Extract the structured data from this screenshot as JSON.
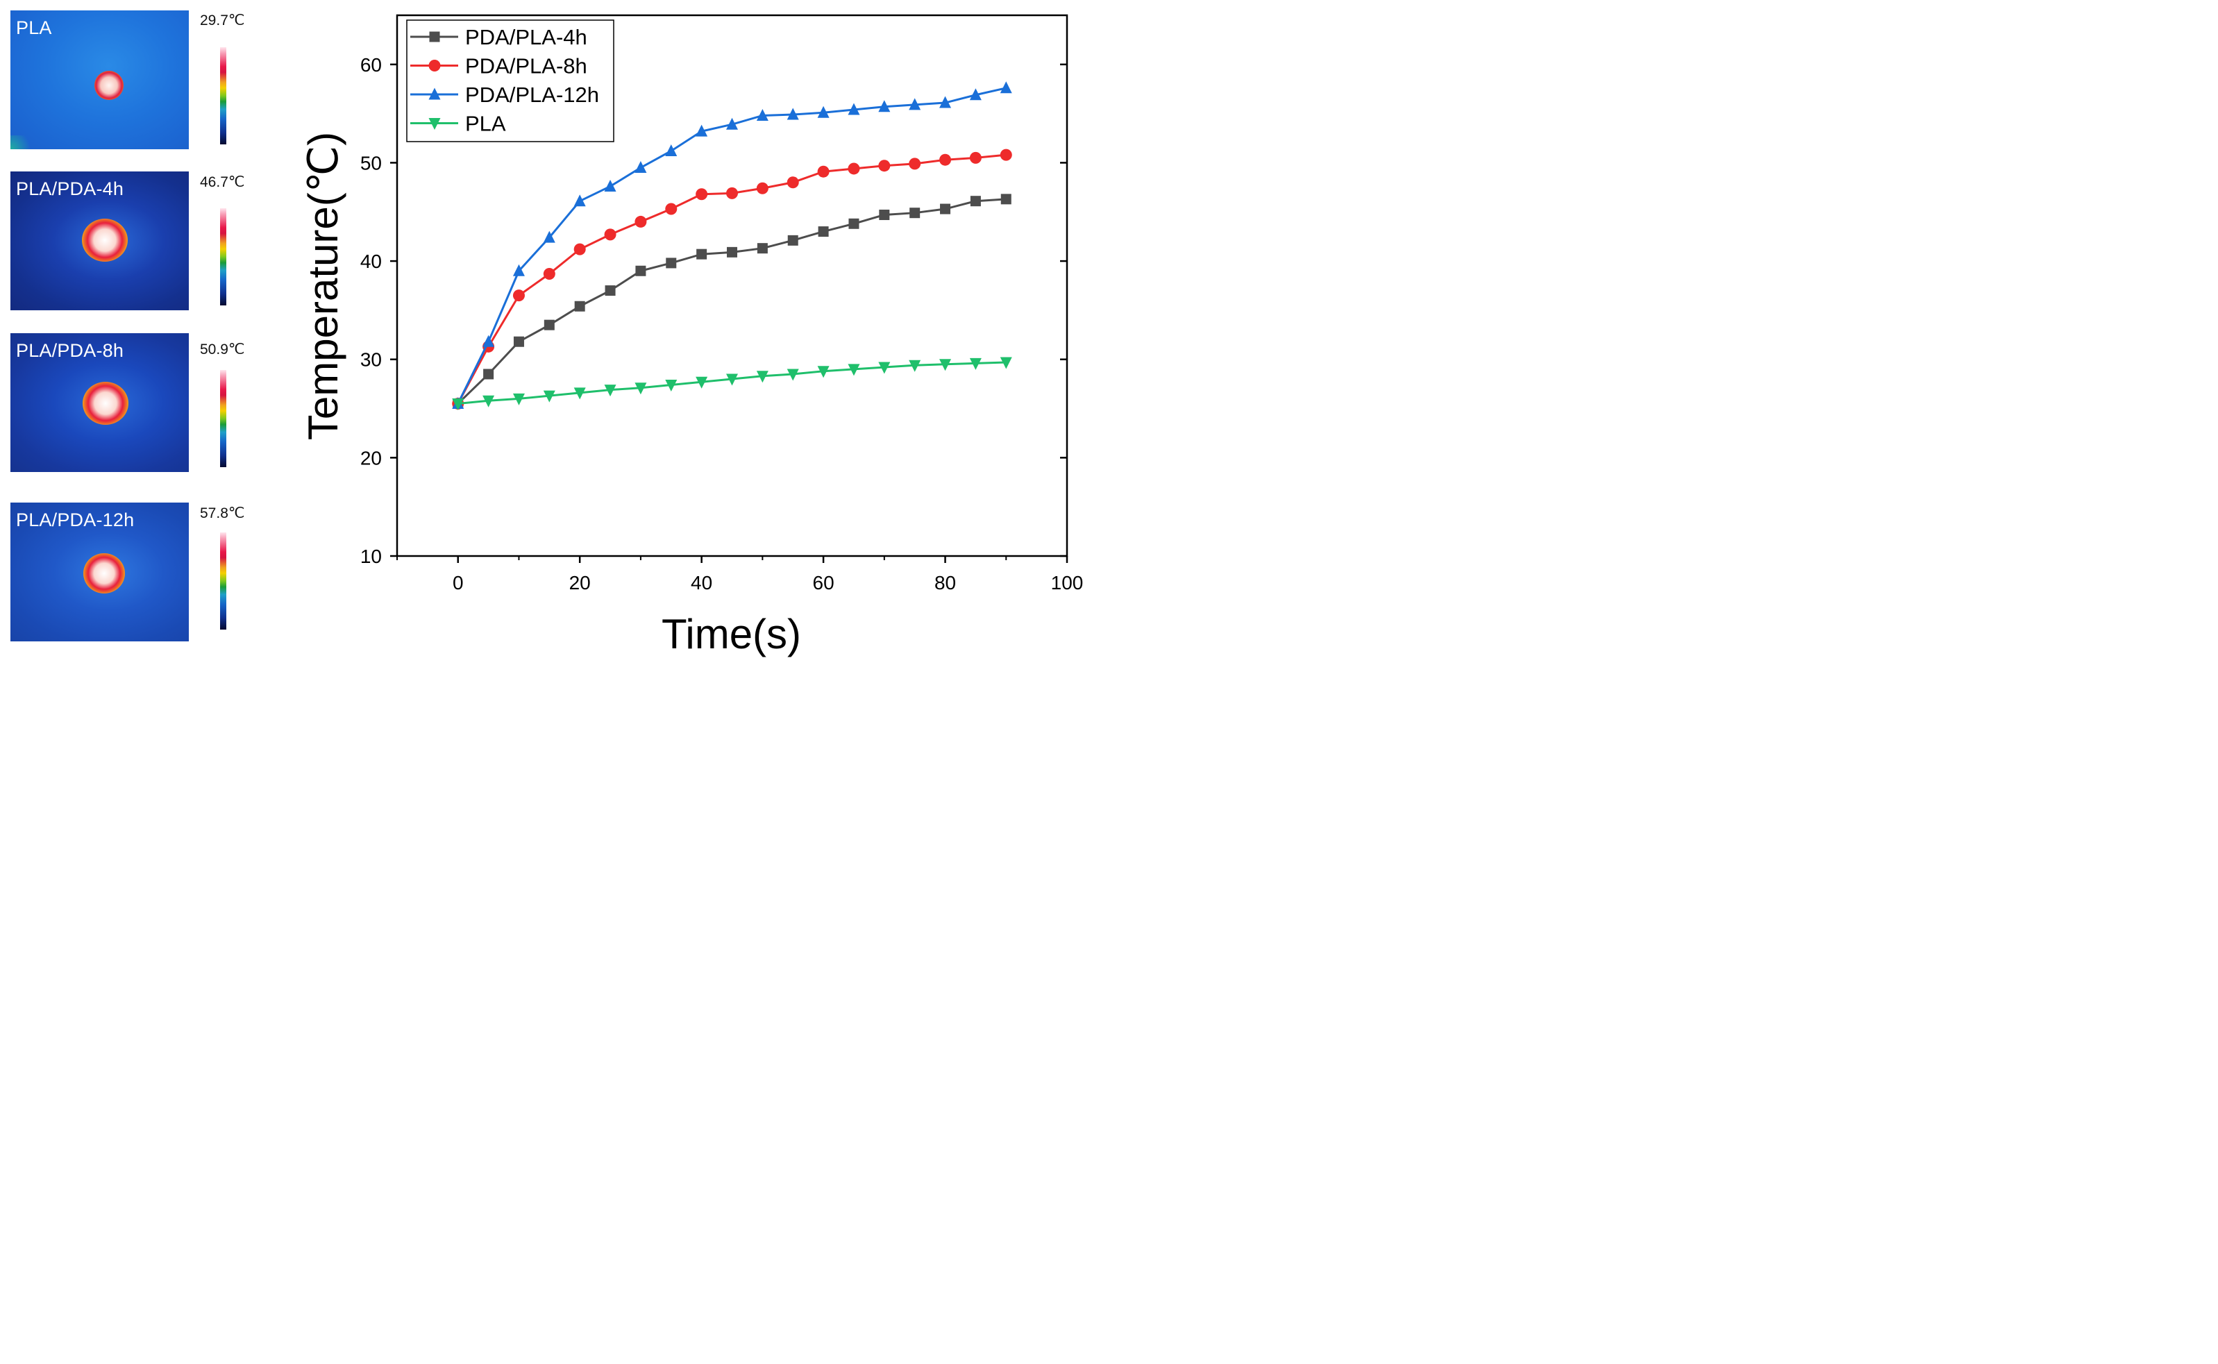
{
  "thermal_images": [
    {
      "label": "PLA",
      "max_temp": "29.7℃"
    },
    {
      "label": "PLA/PDA-4h",
      "max_temp": "46.7℃"
    },
    {
      "label": "PLA/PDA-8h",
      "max_temp": "50.9℃"
    },
    {
      "label": "PLA/PDA-12h",
      "max_temp": "57.8℃"
    }
  ],
  "chart_data": {
    "type": "line",
    "xlabel": "Time(s)",
    "ylabel": "Temperature(℃)",
    "xlim": [
      -10,
      100
    ],
    "ylim": [
      10,
      65
    ],
    "xticks": [
      0,
      20,
      40,
      60,
      80,
      100
    ],
    "yticks": [
      10,
      20,
      30,
      40,
      50,
      60
    ],
    "legend_position": "top-left",
    "x": [
      0,
      5,
      10,
      15,
      20,
      25,
      30,
      35,
      40,
      45,
      50,
      55,
      60,
      65,
      70,
      75,
      80,
      85,
      90
    ],
    "series": [
      {
        "name": "PDA/PLA-4h",
        "color": "#4d4d4d",
        "marker": "square",
        "values": [
          25.5,
          28.5,
          31.8,
          33.5,
          35.4,
          37.0,
          39.0,
          39.8,
          40.7,
          40.9,
          41.3,
          42.1,
          43.0,
          43.8,
          44.7,
          44.9,
          45.3,
          46.1,
          46.3
        ]
      },
      {
        "name": "PDA/PLA-8h",
        "color": "#ee2b2b",
        "marker": "circle",
        "values": [
          25.5,
          31.3,
          36.5,
          38.7,
          41.2,
          42.7,
          44.0,
          45.3,
          46.8,
          46.9,
          47.4,
          48.0,
          49.1,
          49.4,
          49.7,
          49.9,
          50.3,
          50.5,
          50.8
        ]
      },
      {
        "name": "PDA/PLA-12h",
        "color": "#1a6fd8",
        "marker": "triangle-up",
        "values": [
          25.5,
          31.8,
          39.0,
          42.4,
          46.1,
          47.6,
          49.5,
          51.2,
          53.2,
          53.9,
          54.8,
          54.9,
          55.1,
          55.4,
          55.7,
          55.9,
          56.1,
          56.9,
          57.6
        ]
      },
      {
        "name": "PLA",
        "color": "#1fbf6b",
        "marker": "triangle-down",
        "values": [
          25.5,
          25.8,
          26.0,
          26.3,
          26.6,
          26.9,
          27.1,
          27.4,
          27.7,
          28.0,
          28.3,
          28.5,
          28.8,
          29.0,
          29.2,
          29.4,
          29.5,
          29.6,
          29.7
        ]
      }
    ]
  }
}
